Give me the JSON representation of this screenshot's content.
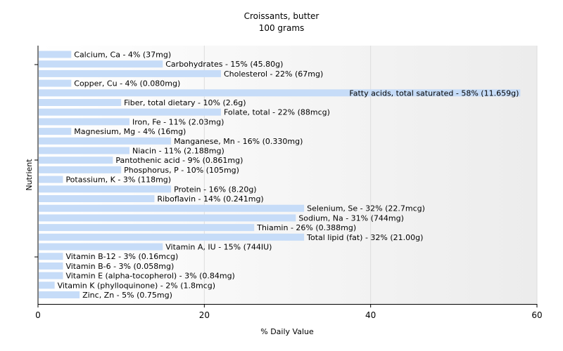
{
  "chart_data": {
    "type": "bar",
    "orientation": "horizontal",
    "title": "Croissants, butter",
    "subtitle": "100 grams",
    "xlabel": "% Daily Value",
    "ylabel": "Nutrient",
    "xlim": [
      0,
      60
    ],
    "xticks": [
      0,
      20,
      40,
      60
    ],
    "grid": true,
    "bar_color": "#c6dcf8",
    "categories": [
      "Calcium, Ca",
      "Carbohydrates",
      "Cholesterol",
      "Copper, Cu",
      "Fatty acids, total saturated",
      "Fiber, total dietary",
      "Folate, total",
      "Iron, Fe",
      "Magnesium, Mg",
      "Manganese, Mn",
      "Niacin",
      "Pantothenic acid",
      "Phosphorus, P",
      "Potassium, K",
      "Protein",
      "Riboflavin",
      "Selenium, Se",
      "Sodium, Na",
      "Thiamin",
      "Total lipid (fat)",
      "Vitamin A, IU",
      "Vitamin B-12",
      "Vitamin B-6",
      "Vitamin E (alpha-tocopherol)",
      "Vitamin K (phylloquinone)",
      "Zinc, Zn"
    ],
    "values": [
      4,
      15,
      22,
      4,
      58,
      10,
      22,
      11,
      4,
      16,
      11,
      9,
      10,
      3,
      16,
      14,
      32,
      31,
      26,
      32,
      15,
      3,
      3,
      3,
      2,
      5
    ],
    "labels": [
      "Calcium, Ca - 4% (37mg)",
      "Carbohydrates - 15% (45.80g)",
      "Cholesterol - 22% (67mg)",
      "Copper, Cu - 4% (0.080mg)",
      "Fatty acids, total saturated - 58% (11.659g)",
      "Fiber, total dietary - 10% (2.6g)",
      "Folate, total - 22% (88mcg)",
      "Iron, Fe - 11% (2.03mg)",
      "Magnesium, Mg - 4% (16mg)",
      "Manganese, Mn - 16% (0.330mg)",
      "Niacin - 11% (2.188mg)",
      "Pantothenic acid - 9% (0.861mg)",
      "Phosphorus, P - 10% (105mg)",
      "Potassium, K - 3% (118mg)",
      "Protein - 16% (8.20g)",
      "Riboflavin - 14% (0.241mg)",
      "Selenium, Se - 32% (22.7mcg)",
      "Sodium, Na - 31% (744mg)",
      "Thiamin - 26% (0.388mg)",
      "Total lipid (fat) - 32% (21.00g)",
      "Vitamin A, IU - 15% (744IU)",
      "Vitamin B-12 - 3% (0.16mcg)",
      "Vitamin B-6 - 3% (0.058mg)",
      "Vitamin E (alpha-tocopherol) - 3% (0.84mg)",
      "Vitamin K (phylloquinone) - 2% (1.8mcg)",
      "Zinc, Zn - 5% (0.75mg)"
    ]
  }
}
